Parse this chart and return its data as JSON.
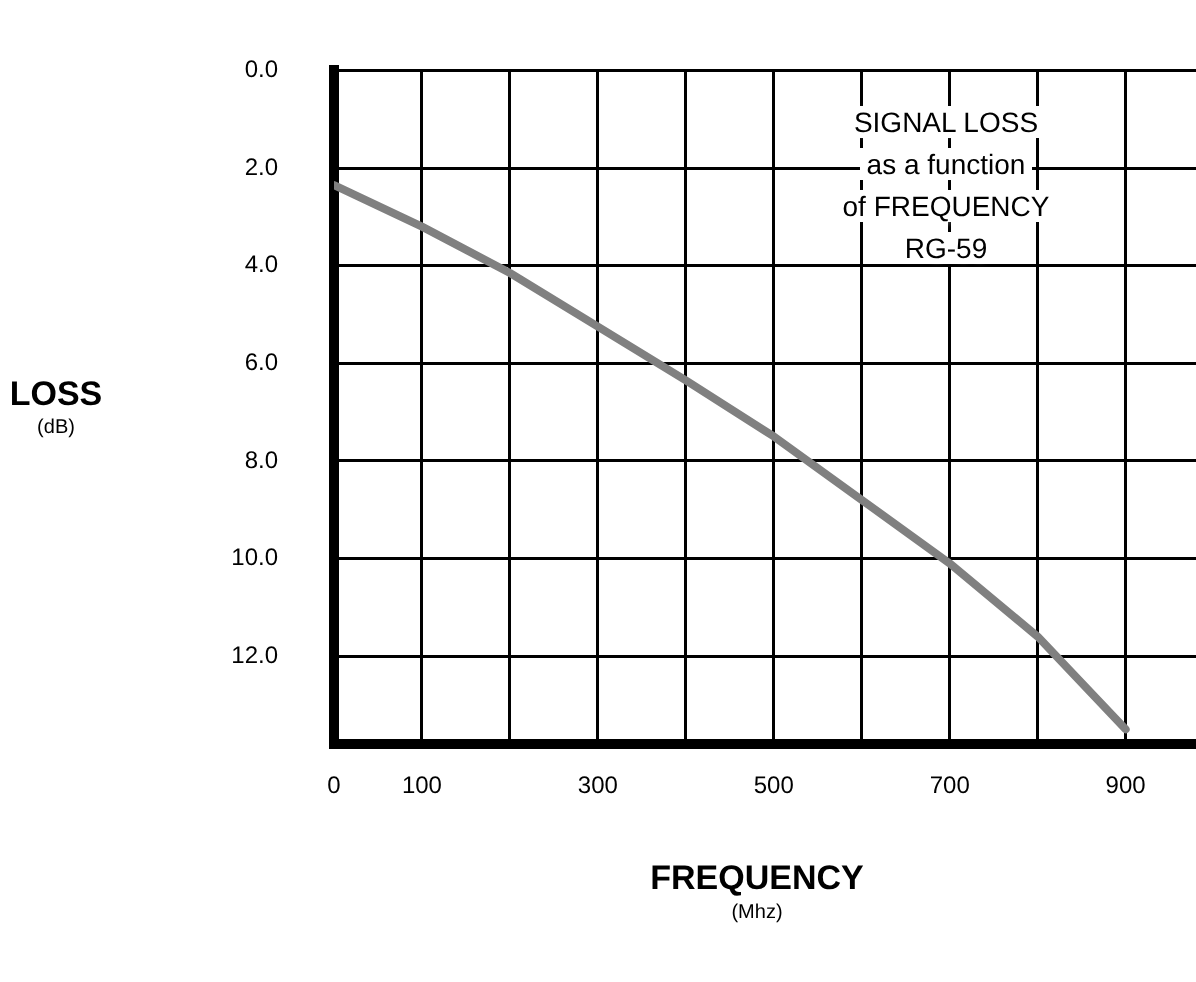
{
  "chart_data": {
    "type": "line",
    "xlabel": "FREQUENCY\n(Mhz)",
    "ylabel": "LOSS\n(dB)",
    "annotations": [
      "SIGNAL LOSS\nas a function\nof FREQUENCY\nRG-59"
    ],
    "x": [
      0,
      100,
      200,
      300,
      400,
      500,
      600,
      700,
      800,
      900
    ],
    "series": [
      {
        "color": "#808080",
        "values": [
          2.35,
          3.2,
          4.15,
          5.25,
          6.35,
          7.5,
          8.8,
          10.1,
          11.6,
          13.5
        ]
      }
    ],
    "xlim": [
      0,
      980
    ],
    "xticks": [
      0,
      100,
      {
        "value": 200,
        "label": null
      },
      300,
      {
        "value": 400,
        "label": null
      },
      500,
      {
        "value": 600,
        "label": null
      },
      700,
      {
        "value": 800,
        "label": null
      },
      900
    ],
    "ylim": [
      13.8,
      0
    ],
    "yticks": [
      {
        "value": 0,
        "label": "0.0"
      },
      {
        "value": 2,
        "label": "2.0"
      },
      {
        "value": 4,
        "label": "4.0"
      },
      {
        "value": 6,
        "label": "6.0"
      },
      {
        "value": 8,
        "label": "8.0"
      },
      {
        "value": 10,
        "label": "10.0"
      },
      {
        "value": 12,
        "label": "12.0"
      }
    ],
    "grid": true,
    "legend": false,
    "marker": "none",
    "line_style": "solid"
  }
}
